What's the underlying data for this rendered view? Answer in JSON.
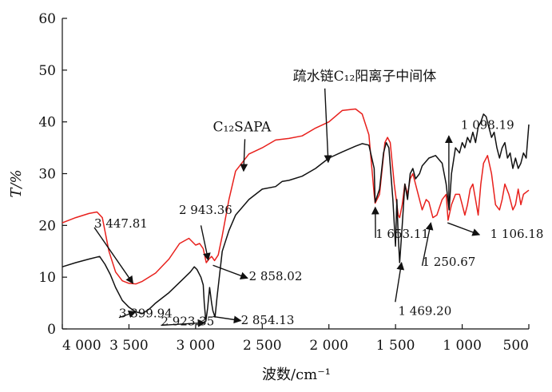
{
  "chart_data": {
    "type": "line",
    "xlabel": "波数/cm⁻¹",
    "ylabel": "T/%",
    "xlim": [
      4000,
      500
    ],
    "ylim": [
      0,
      60
    ],
    "x_ticks": [
      4000,
      3500,
      3000,
      2500,
      2000,
      1500,
      1000,
      500
    ],
    "x_tick_labels": [
      "4 000",
      "3 500",
      "3 000",
      "2 500",
      "2 000",
      "1 500",
      "1 000",
      "500"
    ],
    "y_ticks": [
      0,
      10,
      20,
      30,
      40,
      50,
      60
    ],
    "y_tick_labels": [
      "0",
      "10",
      "20",
      "30",
      "40",
      "50",
      "60"
    ],
    "grid": false,
    "series": [
      {
        "name": "C₁₂SAPA",
        "color": "#e8201c",
        "points": [
          [
            4000,
            20.5
          ],
          [
            3900,
            21.5
          ],
          [
            3800,
            22.3
          ],
          [
            3740,
            22.6
          ],
          [
            3700,
            21.5
          ],
          [
            3650,
            15
          ],
          [
            3600,
            11
          ],
          [
            3550,
            9.3
          ],
          [
            3500,
            8.8
          ],
          [
            3447,
            8.7
          ],
          [
            3400,
            9.2
          ],
          [
            3300,
            10.8
          ],
          [
            3200,
            13.5
          ],
          [
            3120,
            16.5
          ],
          [
            3050,
            17.5
          ],
          [
            3000,
            16.2
          ],
          [
            2970,
            16.5
          ],
          [
            2943,
            15.5
          ],
          [
            2920,
            12.8
          ],
          [
            2900,
            13.5
          ],
          [
            2880,
            14
          ],
          [
            2858,
            13.2
          ],
          [
            2830,
            14.3
          ],
          [
            2800,
            18
          ],
          [
            2750,
            25
          ],
          [
            2700,
            30.5
          ],
          [
            2600,
            33.8
          ],
          [
            2500,
            35
          ],
          [
            2400,
            36.5
          ],
          [
            2300,
            36.8
          ],
          [
            2200,
            37.3
          ],
          [
            2100,
            38.8
          ],
          [
            2000,
            40
          ],
          [
            1900,
            42.2
          ],
          [
            1800,
            42.5
          ],
          [
            1750,
            41.5
          ],
          [
            1700,
            37.5
          ],
          [
            1660,
            26
          ],
          [
            1653,
            24.3
          ],
          [
            1620,
            26
          ],
          [
            1580,
            36
          ],
          [
            1560,
            37
          ],
          [
            1540,
            36
          ],
          [
            1510,
            28
          ],
          [
            1480,
            22
          ],
          [
            1469,
            21.5
          ],
          [
            1450,
            24
          ],
          [
            1430,
            28
          ],
          [
            1410,
            26
          ],
          [
            1390,
            29
          ],
          [
            1370,
            30
          ],
          [
            1340,
            27
          ],
          [
            1300,
            23
          ],
          [
            1270,
            25
          ],
          [
            1250,
            24.5
          ],
          [
            1220,
            21.5
          ],
          [
            1190,
            22
          ],
          [
            1150,
            25
          ],
          [
            1120,
            26
          ],
          [
            1106,
            21
          ],
          [
            1080,
            24
          ],
          [
            1050,
            26
          ],
          [
            1020,
            26
          ],
          [
            1000,
            24
          ],
          [
            980,
            22
          ],
          [
            960,
            24
          ],
          [
            940,
            27
          ],
          [
            920,
            28
          ],
          [
            900,
            25
          ],
          [
            880,
            22
          ],
          [
            860,
            28
          ],
          [
            840,
            32
          ],
          [
            810,
            33.5
          ],
          [
            780,
            30
          ],
          [
            750,
            24
          ],
          [
            720,
            23
          ],
          [
            700,
            25
          ],
          [
            680,
            28
          ],
          [
            650,
            26
          ],
          [
            620,
            23
          ],
          [
            600,
            24
          ],
          [
            580,
            27
          ],
          [
            560,
            24
          ],
          [
            540,
            26
          ],
          [
            500,
            26.8
          ]
        ]
      },
      {
        "name": "疏水链C₁₂阳离子中间体",
        "color": "#111111",
        "points": [
          [
            4000,
            12
          ],
          [
            3900,
            12.8
          ],
          [
            3800,
            13.5
          ],
          [
            3720,
            14
          ],
          [
            3680,
            12.5
          ],
          [
            3640,
            10.5
          ],
          [
            3600,
            8
          ],
          [
            3550,
            5.5
          ],
          [
            3500,
            4.2
          ],
          [
            3450,
            3.3
          ],
          [
            3399,
            3
          ],
          [
            3350,
            3.8
          ],
          [
            3300,
            5
          ],
          [
            3200,
            7
          ],
          [
            3100,
            9.5
          ],
          [
            3040,
            11
          ],
          [
            3010,
            12
          ],
          [
            2990,
            11.5
          ],
          [
            2960,
            10
          ],
          [
            2943,
            8.5
          ],
          [
            2935,
            5
          ],
          [
            2923,
            1.5
          ],
          [
            2910,
            4
          ],
          [
            2895,
            8
          ],
          [
            2880,
            5
          ],
          [
            2870,
            3.5
          ],
          [
            2854,
            2.3
          ],
          [
            2840,
            6
          ],
          [
            2800,
            15
          ],
          [
            2750,
            19
          ],
          [
            2700,
            22
          ],
          [
            2600,
            25
          ],
          [
            2500,
            27
          ],
          [
            2400,
            27.5
          ],
          [
            2350,
            28.5
          ],
          [
            2300,
            28.7
          ],
          [
            2200,
            29.5
          ],
          [
            2100,
            31
          ],
          [
            2000,
            33
          ],
          [
            1900,
            34.2
          ],
          [
            1800,
            35.3
          ],
          [
            1750,
            35.8
          ],
          [
            1700,
            35.5
          ],
          [
            1660,
            31
          ],
          [
            1653,
            24.5
          ],
          [
            1620,
            27
          ],
          [
            1590,
            34
          ],
          [
            1570,
            36
          ],
          [
            1550,
            35
          ],
          [
            1520,
            25
          ],
          [
            1500,
            16
          ],
          [
            1490,
            25
          ],
          [
            1480,
            18
          ],
          [
            1469,
            12.8
          ],
          [
            1450,
            20
          ],
          [
            1430,
            28
          ],
          [
            1410,
            25
          ],
          [
            1390,
            30
          ],
          [
            1370,
            31
          ],
          [
            1350,
            29
          ],
          [
            1320,
            30
          ],
          [
            1300,
            31.5
          ],
          [
            1250,
            33
          ],
          [
            1200,
            33.5
          ],
          [
            1150,
            32
          ],
          [
            1120,
            28
          ],
          [
            1098,
            23
          ],
          [
            1080,
            30
          ],
          [
            1050,
            35
          ],
          [
            1020,
            34
          ],
          [
            1000,
            36
          ],
          [
            980,
            35
          ],
          [
            960,
            37
          ],
          [
            940,
            36
          ],
          [
            920,
            38
          ],
          [
            900,
            36
          ],
          [
            880,
            39
          ],
          [
            860,
            40
          ],
          [
            840,
            41.5
          ],
          [
            820,
            41
          ],
          [
            800,
            39
          ],
          [
            780,
            37
          ],
          [
            760,
            38
          ],
          [
            740,
            35
          ],
          [
            720,
            33
          ],
          [
            700,
            35
          ],
          [
            680,
            36
          ],
          [
            660,
            33
          ],
          [
            640,
            34
          ],
          [
            620,
            31
          ],
          [
            600,
            33
          ],
          [
            580,
            31
          ],
          [
            560,
            32
          ],
          [
            540,
            34
          ],
          [
            520,
            33
          ],
          [
            500,
            39.5
          ]
        ]
      }
    ],
    "series_labels": [
      {
        "id": "c12sapa",
        "text": "C₁₂SAPA",
        "x": 2870,
        "y": 38.2,
        "arrow_to": [
          2640,
          30.5
        ]
      },
      {
        "id": "intermediate",
        "text": "疏水链C₁₂阳离子中间体",
        "x": 2270,
        "y": 48,
        "arrow_to": [
          2005,
          32.2
        ]
      }
    ],
    "annotations": [
      {
        "id": "3447",
        "text": "3 447.81",
        "x": 3760,
        "y": 19.6,
        "arrow_to": [
          3470,
          8.8
        ]
      },
      {
        "id": "2943",
        "text": "2 943.36",
        "x": 3125,
        "y": 22.2,
        "arrow_from": [
          2960,
          20
        ],
        "arrow_to": [
          2905,
          13.3
        ]
      },
      {
        "id": "2858",
        "text": "2 858.02",
        "x": 2600,
        "y": 9.4,
        "arrow_from": [
          2870,
          12.3
        ],
        "arrow_to": [
          2610,
          9.8
        ]
      },
      {
        "id": "3399",
        "text": "3 399.94",
        "x": 3575,
        "y": 2.2,
        "arrow_to": [
          3450,
          3.3
        ]
      },
      {
        "id": "2923",
        "text": "2 923.35",
        "x": 3260,
        "y": 0.7,
        "arrow_to": [
          2930,
          1.2
        ]
      },
      {
        "id": "2854",
        "text": "2 854.13",
        "x": 2660,
        "y": 0.9,
        "arrow_from": [
          2870,
          2.4
        ],
        "arrow_to": [
          2660,
          1.6
        ]
      },
      {
        "id": "1653",
        "text": "1 653.11",
        "x": 1650,
        "y": 17.6,
        "arrow_to": [
          1652,
          23.5
        ]
      },
      {
        "id": "1469",
        "text": "1 469.20",
        "x": 1480,
        "y": 2.7,
        "arrow_from": [
          1502,
          5.2
        ],
        "arrow_to": [
          1455,
          12.8
        ]
      },
      {
        "id": "1250",
        "text": "1 250.67",
        "x": 1300,
        "y": 12.2,
        "arrow_to": [
          1235,
          20.5
        ]
      },
      {
        "id": "1106",
        "text": "1 106.18",
        "x": 790,
        "y": 17.6,
        "arrow_from": [
          1110,
          20.5
        ],
        "arrow_to": [
          870,
          18.2
        ]
      },
      {
        "id": "1098",
        "text": "1 098.19",
        "x": 1010,
        "y": 38.6,
        "arrow_from": [
          1100,
          23.5
        ],
        "arrow_to": [
          1100,
          37.3
        ]
      }
    ]
  }
}
